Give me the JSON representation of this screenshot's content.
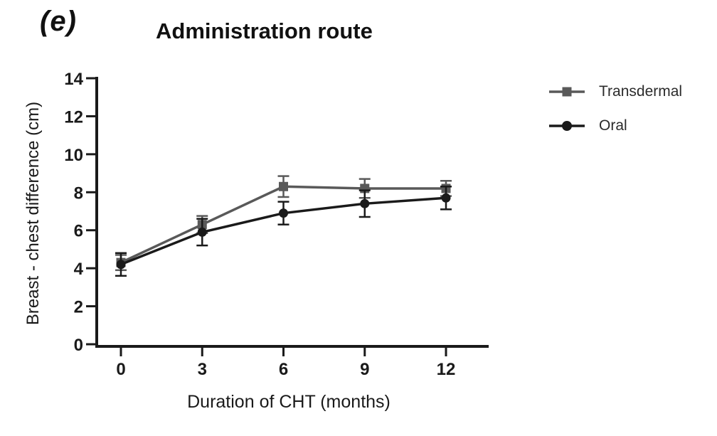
{
  "figure": {
    "panel_label": "(e)",
    "title": "Administration route"
  },
  "chart_data": {
    "type": "line",
    "title": "Administration route",
    "xlabel": "Duration of CHT (months)",
    "ylabel": "Breast - chest difference (cm)",
    "x": [
      0,
      3,
      6,
      9,
      12
    ],
    "x_ticks": [
      0,
      3,
      6,
      9,
      12
    ],
    "y_ticks": [
      0,
      2,
      4,
      6,
      8,
      10,
      12,
      14
    ],
    "xlim": [
      0,
      12
    ],
    "ylim": [
      0,
      14
    ],
    "grid": false,
    "legend_position": "right",
    "error_bars": true,
    "series": [
      {
        "name": "Transdermal",
        "marker": "square",
        "color": "#595959",
        "values": [
          4.3,
          6.3,
          8.3,
          8.2,
          8.2
        ],
        "errors": [
          0.4,
          0.45,
          0.55,
          0.5,
          0.4
        ]
      },
      {
        "name": "Oral",
        "marker": "circle",
        "color": "#1a1a1a",
        "values": [
          4.2,
          5.9,
          6.9,
          7.4,
          7.7
        ],
        "errors": [
          0.6,
          0.7,
          0.6,
          0.7,
          0.6
        ]
      }
    ],
    "axis_color": "#1a1a1a"
  }
}
